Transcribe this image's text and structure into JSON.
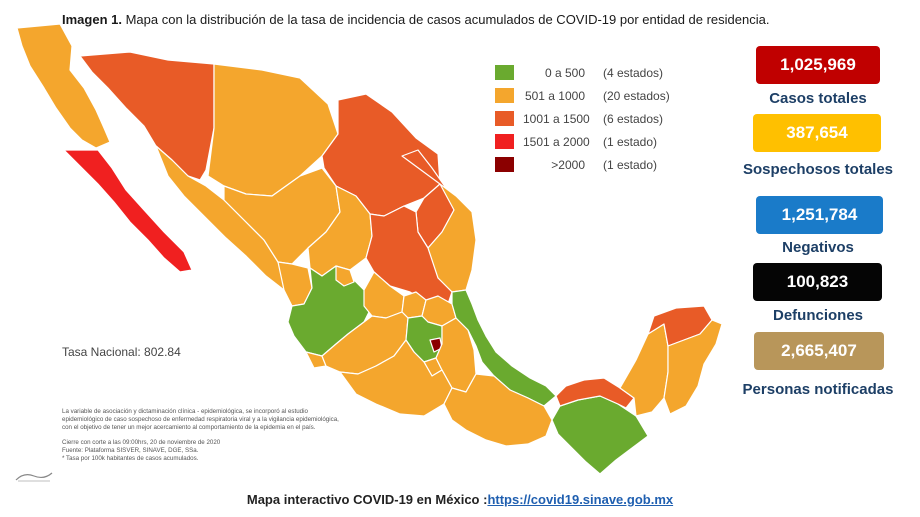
{
  "title": {
    "prefix": "Imagen 1.",
    "text": "Mapa con la distribución de la tasa de incidencia de casos acumulados de COVID-19 por entidad de residencia."
  },
  "colors": {
    "green": "#6aaa2f",
    "orange": "#f4a62d",
    "dark_orange": "#e85b27",
    "red": "#f02020",
    "dark_red": "#8b0000",
    "border": "#ffffff"
  },
  "legend": [
    {
      "range": "0 a   500",
      "count": "(4 estados)",
      "color": "#6aaa2f"
    },
    {
      "range": "501 a  1000",
      "count": "(20 estados)",
      "color": "#f4a62d"
    },
    {
      "range": "1001 a  1500",
      "count": "(6 estados)",
      "color": "#e85b27"
    },
    {
      "range": "1501 a  2000",
      "count": "(1 estado)",
      "color": "#f02020"
    },
    {
      "range": ">2000",
      "count": "(1 estado)",
      "color": "#8b0000"
    }
  ],
  "tasa_nacional": "Tasa Nacional: 802.84",
  "notes": [
    "La variable de asociación y dictaminación clínica - epidemiológica, se incorporó al estudio",
    "epidemiológico de caso sospechoso de enfermedad respiratoria viral y a la vigilancia epidemiológica,",
    "con el objetivo de tener un mejor acercamiento al comportamiento de la epidemia en el país.",
    "Cierre con corte a las 09:00hrs, 20 de noviembre de 2020",
    "Fuente: Plataforma SISVER, SINAVE, DGE, SSa.",
    "* Tasa por 100k habitantes de casos acumulados."
  ],
  "stats": [
    {
      "value": "1,025,969",
      "label": "Casos totales",
      "color": "#c00000"
    },
    {
      "value": "387,654",
      "label": "Sospechosos totales",
      "color": "#ffc000"
    },
    {
      "value": "1,251,784",
      "label": "Negativos",
      "color": "#1a7bc9"
    },
    {
      "value": "100,823",
      "label": "Defunciones",
      "color": "#050505"
    },
    {
      "value": "2,665,407",
      "label": "Personas notificadas",
      "color": "#b8965a"
    }
  ],
  "footer": {
    "text": "Mapa interactivo COVID-19 en México :",
    "link": "https://covid19.sinave.gob.mx"
  }
}
